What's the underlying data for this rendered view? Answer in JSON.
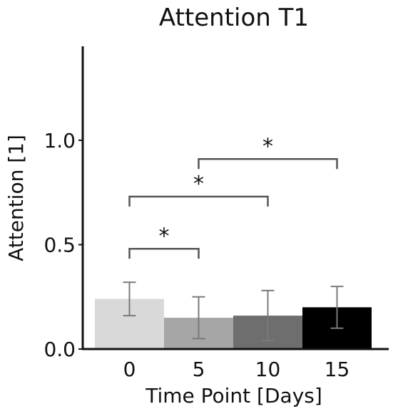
{
  "chart_data": {
    "type": "bar",
    "title": "Attention T1",
    "xlabel": "Time Point [Days]",
    "ylabel": "Attention [1]",
    "categories": [
      "0",
      "5",
      "10",
      "15"
    ],
    "values": [
      0.24,
      0.15,
      0.16,
      0.2
    ],
    "errors": [
      0.08,
      0.1,
      0.12,
      0.1
    ],
    "colors": [
      "#d9d9d9",
      "#a6a6a6",
      "#6e6e6e",
      "#000000"
    ],
    "error_color": "#7a7a7a",
    "ylim": [
      0,
      1.45
    ],
    "yticks": [
      0.0,
      0.5,
      1.0
    ],
    "ytick_labels": [
      "0.0",
      "0.5",
      "1.0"
    ],
    "grid": false,
    "significance": [
      {
        "from": 0,
        "to": 1,
        "y": 0.48,
        "label": "*"
      },
      {
        "from": 0,
        "to": 2,
        "y": 0.73,
        "label": "*"
      },
      {
        "from": 1,
        "to": 3,
        "y": 0.91,
        "label": "*"
      }
    ]
  }
}
